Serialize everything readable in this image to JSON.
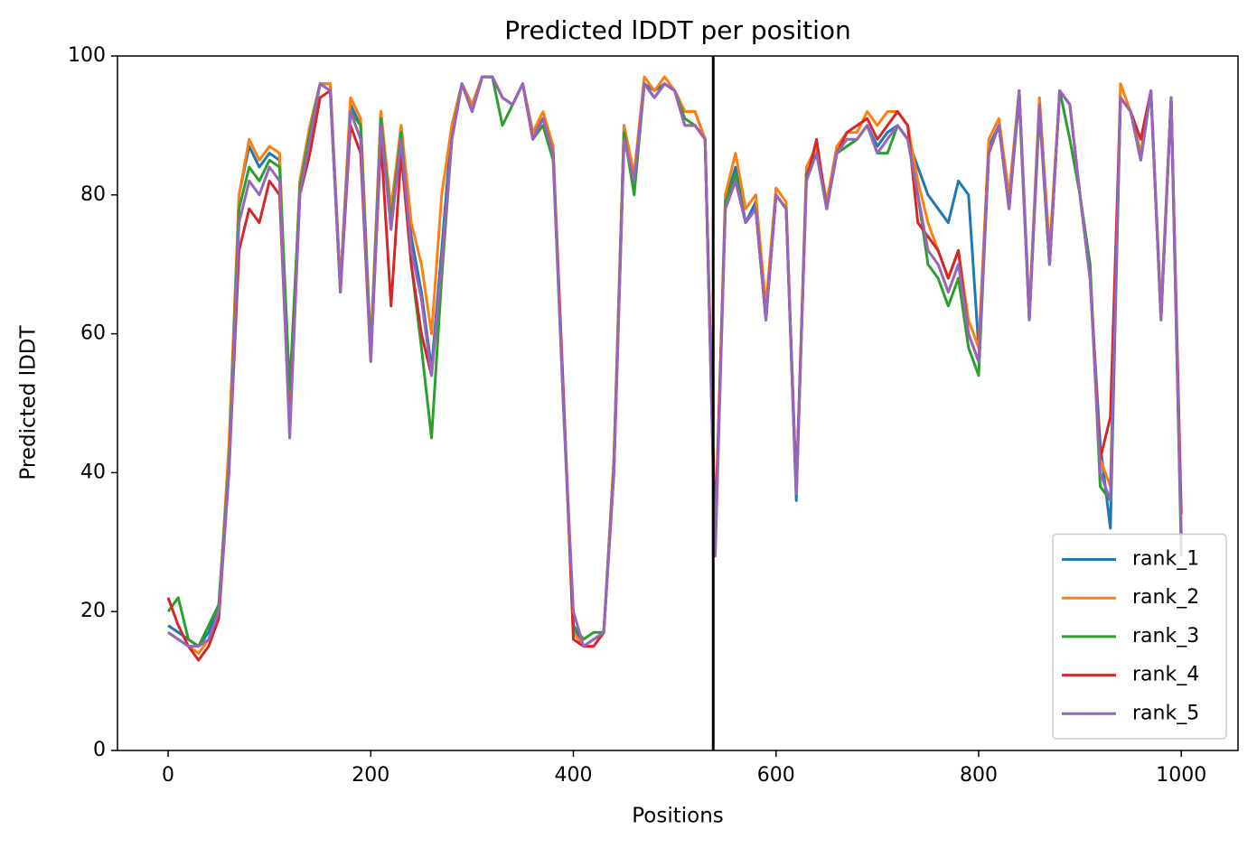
{
  "chart_data": {
    "type": "line",
    "title": "Predicted lDDT per position",
    "xlabel": "Positions",
    "ylabel": "Predicted lDDT",
    "x": [
      0,
      10,
      20,
      30,
      40,
      50,
      60,
      70,
      80,
      90,
      100,
      110,
      120,
      130,
      140,
      150,
      160,
      170,
      180,
      190,
      200,
      210,
      220,
      230,
      240,
      250,
      260,
      270,
      280,
      290,
      300,
      310,
      320,
      330,
      340,
      350,
      360,
      370,
      380,
      390,
      400,
      410,
      420,
      430,
      440,
      450,
      460,
      470,
      480,
      490,
      500,
      510,
      520,
      530,
      540,
      550,
      560,
      570,
      580,
      590,
      600,
      610,
      620,
      630,
      640,
      650,
      660,
      670,
      680,
      690,
      700,
      710,
      720,
      730,
      740,
      750,
      760,
      770,
      780,
      790,
      800,
      810,
      820,
      830,
      840,
      850,
      860,
      870,
      880,
      890,
      900,
      910,
      920,
      930,
      940,
      950,
      960,
      970,
      980,
      990,
      1000
    ],
    "series": [
      {
        "name": "rank_1",
        "color": "#1f77b4",
        "values": [
          18,
          17,
          16,
          15,
          17,
          21,
          42,
          80,
          87,
          84,
          86,
          85,
          47,
          82,
          90,
          96,
          96,
          67,
          93,
          90,
          57,
          92,
          77,
          90,
          74,
          66,
          55,
          72,
          90,
          96,
          93,
          97,
          97,
          94,
          93,
          96,
          89,
          91,
          86,
          51,
          18,
          15,
          16,
          17,
          42,
          90,
          82,
          96,
          95,
          96,
          95,
          92,
          92,
          88,
          30,
          79,
          84,
          76,
          79,
          63,
          80,
          78,
          36,
          83,
          86,
          79,
          86,
          87,
          88,
          90,
          87,
          89,
          90,
          88,
          84,
          80,
          78,
          76,
          82,
          80,
          58,
          87,
          90,
          79,
          95,
          63,
          93,
          70,
          95,
          93,
          80,
          68,
          44,
          32,
          94,
          92,
          86,
          95,
          63,
          94,
          31
        ]
      },
      {
        "name": "rank_2",
        "color": "#ff7f0e",
        "values": [
          17,
          16,
          15,
          14,
          16,
          20,
          44,
          80,
          88,
          85,
          87,
          86,
          48,
          82,
          90,
          96,
          96,
          67,
          94,
          91,
          58,
          92,
          78,
          90,
          76,
          70,
          60,
          80,
          90,
          96,
          93,
          97,
          97,
          94,
          93,
          96,
          89,
          92,
          87,
          52,
          17,
          15,
          15,
          17,
          42,
          90,
          83,
          97,
          95,
          97,
          95,
          92,
          92,
          88,
          30,
          80,
          86,
          78,
          80,
          64,
          81,
          79,
          37,
          84,
          87,
          79,
          87,
          89,
          89,
          92,
          90,
          92,
          92,
          90,
          82,
          76,
          72,
          68,
          72,
          62,
          58,
          88,
          91,
          80,
          95,
          63,
          94,
          72,
          95,
          93,
          80,
          69,
          42,
          38,
          96,
          92,
          86,
          95,
          63,
          94,
          30
        ]
      },
      {
        "name": "rank_3",
        "color": "#2ca02c",
        "values": [
          20,
          22,
          16,
          15,
          18,
          21,
          41,
          78,
          84,
          82,
          85,
          84,
          52,
          81,
          89,
          96,
          95,
          66,
          92,
          90,
          57,
          91,
          76,
          89,
          70,
          58,
          45,
          68,
          88,
          96,
          92,
          97,
          97,
          90,
          93,
          96,
          88,
          90,
          85,
          50,
          18,
          16,
          17,
          17,
          41,
          89,
          80,
          96,
          94,
          96,
          95,
          91,
          90,
          88,
          29,
          79,
          83,
          76,
          78,
          62,
          80,
          78,
          37,
          83,
          86,
          78,
          86,
          87,
          88,
          90,
          86,
          86,
          90,
          88,
          80,
          70,
          68,
          64,
          68,
          58,
          54,
          86,
          90,
          78,
          94,
          62,
          92,
          70,
          95,
          88,
          80,
          70,
          38,
          36,
          94,
          92,
          85,
          95,
          62,
          94,
          28
        ]
      },
      {
        "name": "rank_4",
        "color": "#d62728",
        "values": [
          22,
          18,
          15,
          13,
          15,
          19,
          40,
          72,
          78,
          76,
          82,
          80,
          46,
          80,
          86,
          94,
          95,
          66,
          90,
          86,
          56,
          88,
          64,
          86,
          70,
          60,
          54,
          70,
          88,
          96,
          92,
          97,
          97,
          94,
          93,
          96,
          88,
          91,
          86,
          52,
          16,
          15,
          15,
          17,
          40,
          88,
          82,
          96,
          94,
          96,
          95,
          90,
          90,
          88,
          32,
          78,
          82,
          76,
          78,
          62,
          80,
          78,
          38,
          82,
          88,
          78,
          86,
          89,
          90,
          91,
          88,
          90,
          92,
          90,
          76,
          74,
          72,
          68,
          72,
          60,
          56,
          86,
          90,
          78,
          95,
          62,
          93,
          70,
          95,
          93,
          80,
          68,
          42,
          48,
          94,
          92,
          88,
          95,
          62,
          94,
          34
        ]
      },
      {
        "name": "rank_5",
        "color": "#9467bd",
        "values": [
          17,
          16,
          15,
          15,
          16,
          20,
          40,
          76,
          82,
          80,
          84,
          82,
          45,
          80,
          88,
          96,
          95,
          66,
          92,
          88,
          56,
          90,
          75,
          88,
          72,
          65,
          54,
          70,
          88,
          96,
          92,
          97,
          97,
          94,
          93,
          96,
          88,
          91,
          86,
          50,
          20,
          15,
          16,
          17,
          40,
          88,
          82,
          96,
          94,
          96,
          95,
          90,
          90,
          88,
          28,
          78,
          82,
          76,
          78,
          62,
          80,
          78,
          37,
          82,
          86,
          78,
          86,
          88,
          88,
          90,
          86,
          88,
          90,
          88,
          80,
          72,
          70,
          66,
          70,
          60,
          56,
          86,
          90,
          78,
          95,
          62,
          93,
          70,
          95,
          93,
          80,
          68,
          40,
          36,
          94,
          92,
          85,
          95,
          62,
          94,
          30
        ]
      }
    ],
    "vline": 538,
    "vline_color": "#000000",
    "xlim": [
      -50,
      1056
    ],
    "xticks": [
      0,
      200,
      400,
      600,
      800,
      1000
    ],
    "ylim": [
      0,
      100
    ],
    "yticks": [
      0,
      20,
      40,
      60,
      80,
      100
    ],
    "legend": "lower right"
  }
}
